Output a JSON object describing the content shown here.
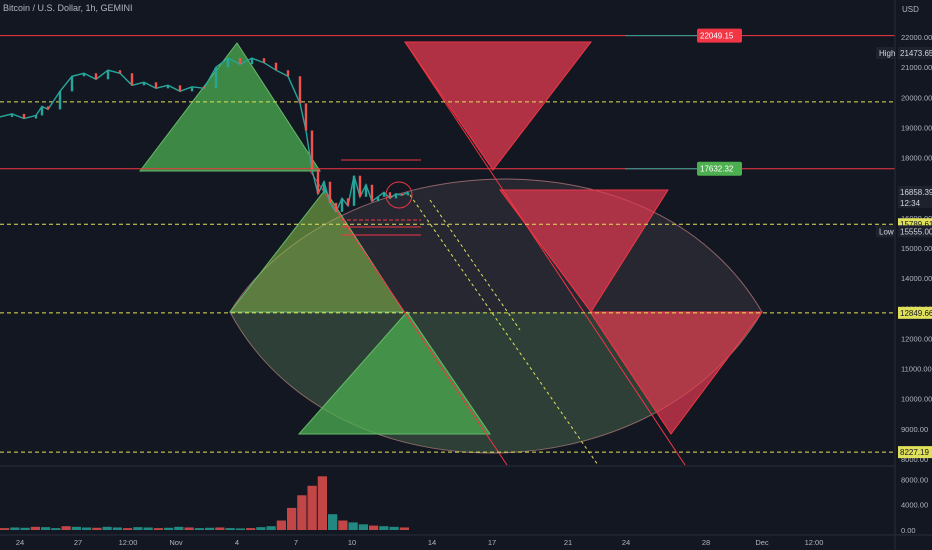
{
  "header": {
    "title": "Bitcoin / U.S. Dollar, 1h, GEMINI",
    "currency": "USD"
  },
  "colors": {
    "background": "#131722",
    "red_line": "#f23645",
    "yellow_dash": "#e0e05a",
    "green_fill": "#4caf50",
    "red_fill": "#e53950",
    "candle_up": "#26a69a",
    "candle_down": "#ef5350"
  },
  "chart_data": {
    "type": "line",
    "title": "Bitcoin / U.S. Dollar, 1h, GEMINI",
    "ylim": [
      7800,
      22700
    ],
    "y_ticks": [
      22000,
      21000,
      20000,
      19000,
      18000,
      17000,
      16000,
      15000,
      14000,
      13000,
      12000,
      11000,
      10000,
      9000,
      8000
    ],
    "y_tick_labels": [
      "22000.00",
      "21000.00",
      "20000.00",
      "19000.00",
      "18000.00",
      "17000.00",
      "16000.00",
      "15000.00",
      "14000.00",
      "13000.00",
      "12000.00",
      "11000.00",
      "10000.00",
      "9000.00",
      "8000.00"
    ],
    "x_tick_labels": [
      "24",
      "27",
      "12:00",
      "Nov",
      "4",
      "7",
      "10",
      "14",
      "17",
      "21",
      "24",
      "28",
      "Dec",
      "12:00"
    ],
    "price_series": [
      [
        0,
        19350
      ],
      [
        2,
        19450
      ],
      [
        4,
        19300
      ],
      [
        6,
        19400
      ],
      [
        7,
        19700
      ],
      [
        8,
        19600
      ],
      [
        10,
        20200
      ],
      [
        12,
        20700
      ],
      [
        14,
        20800
      ],
      [
        16,
        20600
      ],
      [
        18,
        20900
      ],
      [
        20,
        20800
      ],
      [
        22,
        20400
      ],
      [
        24,
        20500
      ],
      [
        26,
        20300
      ],
      [
        28,
        20400
      ],
      [
        30,
        20200
      ],
      [
        32,
        20350
      ],
      [
        34,
        20300
      ],
      [
        36,
        21000
      ],
      [
        38,
        21300
      ],
      [
        40,
        21100
      ],
      [
        42,
        21300
      ],
      [
        44,
        21150
      ],
      [
        46,
        20900
      ],
      [
        48,
        20700
      ],
      [
        50,
        19800
      ],
      [
        51,
        18900
      ],
      [
        52,
        17600
      ],
      [
        53,
        16800
      ],
      [
        54,
        17200
      ],
      [
        55,
        16500
      ],
      [
        56,
        16200
      ],
      [
        57,
        16650
      ],
      [
        58,
        16400
      ],
      [
        59,
        17400
      ],
      [
        60,
        16700
      ],
      [
        61,
        17100
      ],
      [
        62,
        16550
      ],
      [
        63,
        16700
      ],
      [
        64,
        16850
      ],
      [
        65,
        16650
      ],
      [
        66,
        16800
      ],
      [
        67,
        16750
      ],
      [
        68,
        16850
      ]
    ],
    "horizontal_levels": [
      {
        "value": 22049.15,
        "label": "22049.15",
        "style": "solid-red",
        "tag": "red"
      },
      {
        "value": 21473.65,
        "label": "21473.65",
        "style": "none",
        "tag": "dark",
        "prefix": "High"
      },
      {
        "value": 19850,
        "label": "",
        "style": "dashed-yellow",
        "tag": "none"
      },
      {
        "value": 17632.32,
        "label": "17632.32",
        "style": "solid-red",
        "tag": "green"
      },
      {
        "value": 16858.39,
        "label": "16858.39",
        "style": "none",
        "tag": "dark",
        "sub": "12:34"
      },
      {
        "value": 15789.61,
        "label": "15789.61",
        "style": "dashed-yellow",
        "tag": "yellow"
      },
      {
        "value": 15555.0,
        "label": "15555.00",
        "style": "none",
        "tag": "dark",
        "prefix": "Low"
      },
      {
        "value": 12849.66,
        "label": "12849.66",
        "style": "dashed-yellow",
        "tag": "yellow"
      },
      {
        "value": 8227.19,
        "label": "8227.19",
        "style": "dashed-yellow",
        "tag": "yellow"
      }
    ],
    "volume": {
      "y_tick_labels": [
        "8000.00",
        "4000.00",
        "0.00"
      ],
      "ylim": [
        0,
        9500
      ],
      "values": [
        300,
        400,
        350,
        500,
        450,
        300,
        600,
        500,
        400,
        350,
        500,
        400,
        300,
        450,
        400,
        300,
        350,
        500,
        400,
        300,
        350,
        400,
        300,
        250,
        300,
        450,
        600,
        1500,
        3500,
        5500,
        7000,
        8500,
        2500,
        1500,
        1200,
        900,
        700,
        600,
        500,
        400
      ]
    }
  }
}
